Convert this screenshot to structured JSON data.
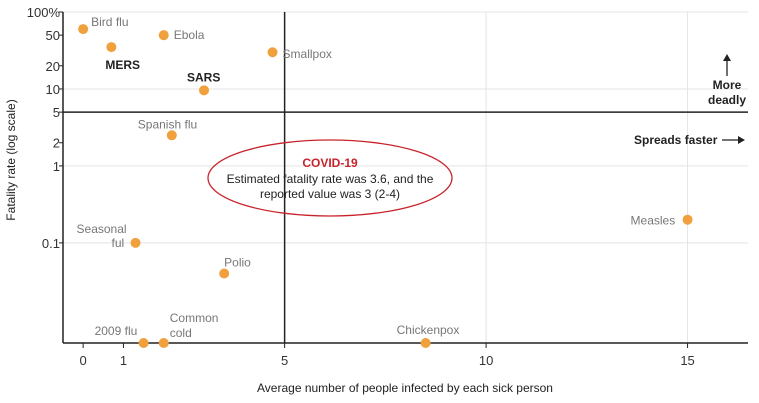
{
  "chart_data": {
    "type": "scatter",
    "xlabel": "Average number of people infected by each sick person",
    "ylabel": "Fatality rate (log scale)",
    "x_ticks": [
      "0",
      "1",
      "5",
      "10",
      "15"
    ],
    "y_ticks": [
      "100%",
      "50",
      "20",
      "10",
      "5",
      "2",
      "1",
      "0.1"
    ],
    "xlim": [
      -0.5,
      16.5
    ],
    "ylim": [
      0.005,
      100
    ],
    "y_scale": "log",
    "threshold_x": 5,
    "threshold_y": 5,
    "grid": true,
    "point_color": "#f0a03c",
    "points": [
      {
        "name": "Bird flu",
        "x": 0,
        "y": 60
      },
      {
        "name": "MERS",
        "x": 0.7,
        "y": 35
      },
      {
        "name": "Ebola",
        "x": 2.0,
        "y": 50
      },
      {
        "name": "Smallpox",
        "x": 4.7,
        "y": 30
      },
      {
        "name": "SARS",
        "x": 3.0,
        "y": 9.6
      },
      {
        "name": "Spanish flu",
        "x": 2.2,
        "y": 2.5
      },
      {
        "name": "Seasonal ful",
        "x": 1.3,
        "y": 0.1
      },
      {
        "name": "Polio",
        "x": 3.5,
        "y": 0.04
      },
      {
        "name": "2009 flu",
        "x": 1.5,
        "y": 0.005
      },
      {
        "name": "Common cold",
        "x": 2.0,
        "y": 0.005
      },
      {
        "name": "Chickenpox",
        "x": 8.5,
        "y": 0.005
      },
      {
        "name": "Measles",
        "x": 15.0,
        "y": 0.2
      }
    ],
    "annotations": {
      "spreads_faster": "Spreads faster",
      "more_deadly_1": "More",
      "more_deadly_2": "deadly",
      "covid_title": "COVID-19",
      "covid_line1": "Estimated fatality rate was 3.6, and the",
      "covid_line2": "reported value was 3 (2-4)"
    },
    "covid_color": "#c8232b"
  }
}
